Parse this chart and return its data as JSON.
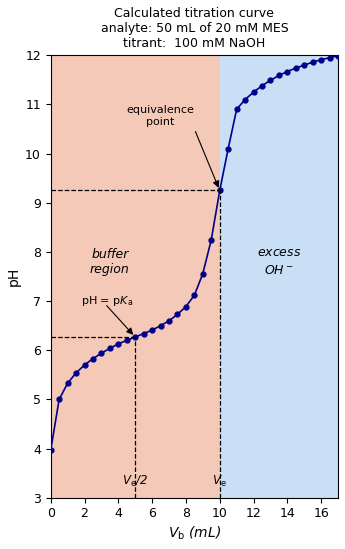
{
  "title_line1": "Calculated titration curve",
  "title_line2": "analyte: 50 mL of 20 mM MES",
  "title_line3": "titrant:  100 mM NaOH",
  "xlabel": "$V_\\mathrm{b}$ (mL)",
  "ylabel": "pH",
  "xlim": [
    0,
    17
  ],
  "ylim": [
    3,
    12
  ],
  "yticks": [
    3,
    4,
    5,
    6,
    7,
    8,
    9,
    10,
    11,
    12
  ],
  "xticks": [
    0,
    2,
    4,
    6,
    8,
    10,
    12,
    14,
    16
  ],
  "pKa": 6.27,
  "Ve": 10.0,
  "Ve_half": 5.0,
  "pH_eq": 9.25,
  "bg_color": "#f5f5f5",
  "buffer_color": "#f5c9b8",
  "excess_color": "#c8dff5",
  "line_color": "#00008B",
  "marker_color": "#00008B",
  "data_Vb": [
    0,
    0.5,
    1.0,
    1.5,
    2.0,
    2.5,
    3.0,
    3.5,
    4.0,
    4.5,
    5.0,
    5.5,
    6.0,
    6.5,
    7.0,
    7.5,
    8.0,
    8.5,
    9.0,
    9.5,
    10.0,
    10.5,
    11.0,
    11.5,
    12.0,
    12.5,
    13.0,
    13.5,
    14.0,
    14.5,
    15.0,
    15.5,
    16.0,
    16.5,
    17.0
  ],
  "data_pH": [
    3.97,
    5.0,
    5.33,
    5.54,
    5.7,
    5.83,
    5.94,
    6.04,
    6.13,
    6.2,
    6.27,
    6.34,
    6.41,
    6.5,
    6.6,
    6.73,
    6.89,
    7.12,
    7.56,
    8.25,
    9.25,
    10.1,
    10.9,
    11.1,
    11.25,
    11.38,
    11.49,
    11.59,
    11.67,
    11.74,
    11.8,
    11.86,
    11.91,
    11.95,
    11.99
  ]
}
